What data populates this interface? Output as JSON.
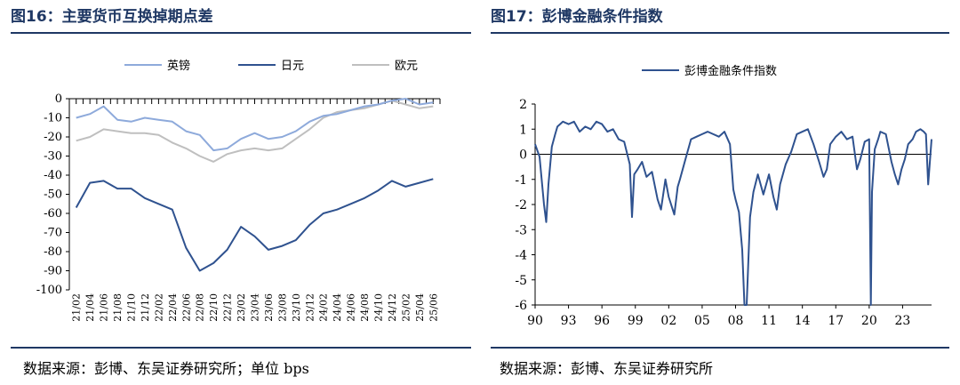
{
  "left": {
    "figure_title": "图16：主要货币互换掉期点差",
    "source": "数据来源：彭博、东吴证券研究所；单位 bps"
  },
  "right": {
    "figure_title": "图17：彭博金融条件指数",
    "source": "数据来源：彭博、东吴证券研究所"
  },
  "chart_data": [
    {
      "type": "line",
      "title": "",
      "xlabel": "",
      "ylabel": "",
      "ylim": [
        -100,
        0
      ],
      "yticks": [
        0,
        -10,
        -20,
        -30,
        -40,
        -50,
        -60,
        -70,
        -80,
        -90,
        -100
      ],
      "legend_position": "top",
      "grid": false,
      "categories": [
        "21/02",
        "21/04",
        "21/06",
        "21/08",
        "21/10",
        "21/12",
        "22/02",
        "22/04",
        "22/06",
        "22/08",
        "22/10",
        "22/12",
        "23/02",
        "23/04",
        "23/06",
        "23/08",
        "23/10",
        "23/12",
        "24/02",
        "24/04",
        "24/06",
        "24/08",
        "24/10",
        "24/12",
        "25/02",
        "25/04",
        "25/06"
      ],
      "series": [
        {
          "name": "英镑",
          "color": "#8eaadb",
          "values": [
            -10,
            -8,
            -4,
            -11,
            -12,
            -10,
            -11,
            -12,
            -17,
            -19,
            -27,
            -26,
            -21,
            -18,
            -21,
            -20,
            -17,
            -12,
            -9,
            -8,
            -6,
            -4,
            -3,
            -1,
            0,
            -3,
            -2
          ]
        },
        {
          "name": "日元",
          "color": "#2f528f",
          "values": [
            -57,
            -44,
            -43,
            -47,
            -47,
            -52,
            -55,
            -58,
            -78,
            -90,
            -86,
            -79,
            -67,
            -72,
            -79,
            -77,
            -74,
            -66,
            -60,
            -58,
            -55,
            -52,
            -48,
            -43,
            -46,
            -44,
            -42
          ]
        },
        {
          "name": "欧元",
          "color": "#bfbfbf",
          "values": [
            -22,
            -20,
            -16,
            -17,
            -18,
            -18,
            -19,
            -23,
            -26,
            -30,
            -33,
            -29,
            -27,
            -26,
            -27,
            -26,
            -21,
            -16,
            -10,
            -7,
            -6,
            -5,
            -3,
            -1,
            -3,
            -5,
            -4
          ]
        }
      ]
    },
    {
      "type": "line",
      "title": "",
      "xlabel": "",
      "ylabel": "",
      "ylim": [
        -6,
        2
      ],
      "yticks": [
        2,
        1,
        0,
        -1,
        -2,
        -3,
        -4,
        -5,
        -6
      ],
      "xticks": [
        "90",
        "93",
        "96",
        "99",
        "02",
        "05",
        "08",
        "11",
        "14",
        "17",
        "20",
        "23"
      ],
      "x_range": [
        1990,
        2025.6
      ],
      "legend_position": "top",
      "grid": false,
      "series": [
        {
          "name": "彭博金融条件指数",
          "color": "#2f528f",
          "x": [
            1990,
            1990.4,
            1990.8,
            1991.0,
            1991.2,
            1991.5,
            1991.8,
            1992.0,
            1992.5,
            1993.0,
            1993.5,
            1994.0,
            1994.5,
            1995.0,
            1995.5,
            1996.0,
            1996.5,
            1997.0,
            1997.5,
            1998.0,
            1998.5,
            1998.7,
            1998.9,
            1999.2,
            1999.6,
            2000.0,
            2000.5,
            2001.0,
            2001.3,
            2001.7,
            2002.0,
            2002.5,
            2002.8,
            2003.0,
            2003.5,
            2004.0,
            2004.5,
            2005.0,
            2005.5,
            2006.0,
            2006.5,
            2007.0,
            2007.5,
            2007.8,
            2008.0,
            2008.3,
            2008.6,
            2008.8,
            2009.0,
            2009.3,
            2009.6,
            2010.0,
            2010.5,
            2011.0,
            2011.4,
            2011.7,
            2012.0,
            2012.5,
            2013.0,
            2013.5,
            2014.0,
            2014.5,
            2015.0,
            2015.5,
            2015.9,
            2016.2,
            2016.5,
            2017.0,
            2017.5,
            2018.0,
            2018.5,
            2018.9,
            2019.2,
            2019.6,
            2020.0,
            2020.15,
            2020.25,
            2020.5,
            2020.8,
            2021.0,
            2021.5,
            2022.0,
            2022.3,
            2022.6,
            2022.9,
            2023.2,
            2023.5,
            2023.9,
            2024.2,
            2024.6,
            2024.9,
            2025.1,
            2025.3,
            2025.6
          ],
          "values": [
            0.4,
            -0.1,
            -2.0,
            -2.7,
            -1.2,
            0.3,
            0.8,
            1.1,
            1.3,
            1.2,
            1.3,
            0.9,
            1.1,
            1.0,
            1.3,
            1.2,
            0.9,
            1.0,
            0.6,
            0.5,
            -0.4,
            -2.5,
            -0.8,
            -0.6,
            -0.3,
            -0.9,
            -0.7,
            -1.8,
            -2.2,
            -1.0,
            -1.7,
            -2.4,
            -1.3,
            -1.0,
            -0.2,
            0.6,
            0.7,
            0.8,
            0.9,
            0.8,
            0.7,
            0.9,
            0.4,
            -1.4,
            -1.8,
            -2.3,
            -3.8,
            -6.0,
            -6.0,
            -2.5,
            -1.5,
            -0.8,
            -1.6,
            -0.8,
            -1.7,
            -2.2,
            -1.2,
            -0.4,
            0.1,
            0.8,
            0.9,
            1.0,
            0.4,
            -0.3,
            -0.9,
            -0.6,
            0.4,
            0.7,
            0.9,
            0.6,
            0.7,
            -0.6,
            -0.2,
            0.5,
            0.6,
            -6.0,
            -1.5,
            0.2,
            0.6,
            0.9,
            0.8,
            -0.3,
            -0.8,
            -1.2,
            -0.6,
            -0.2,
            0.4,
            0.6,
            0.9,
            1.0,
            0.9,
            0.8,
            -1.2,
            0.6
          ]
        }
      ]
    }
  ]
}
